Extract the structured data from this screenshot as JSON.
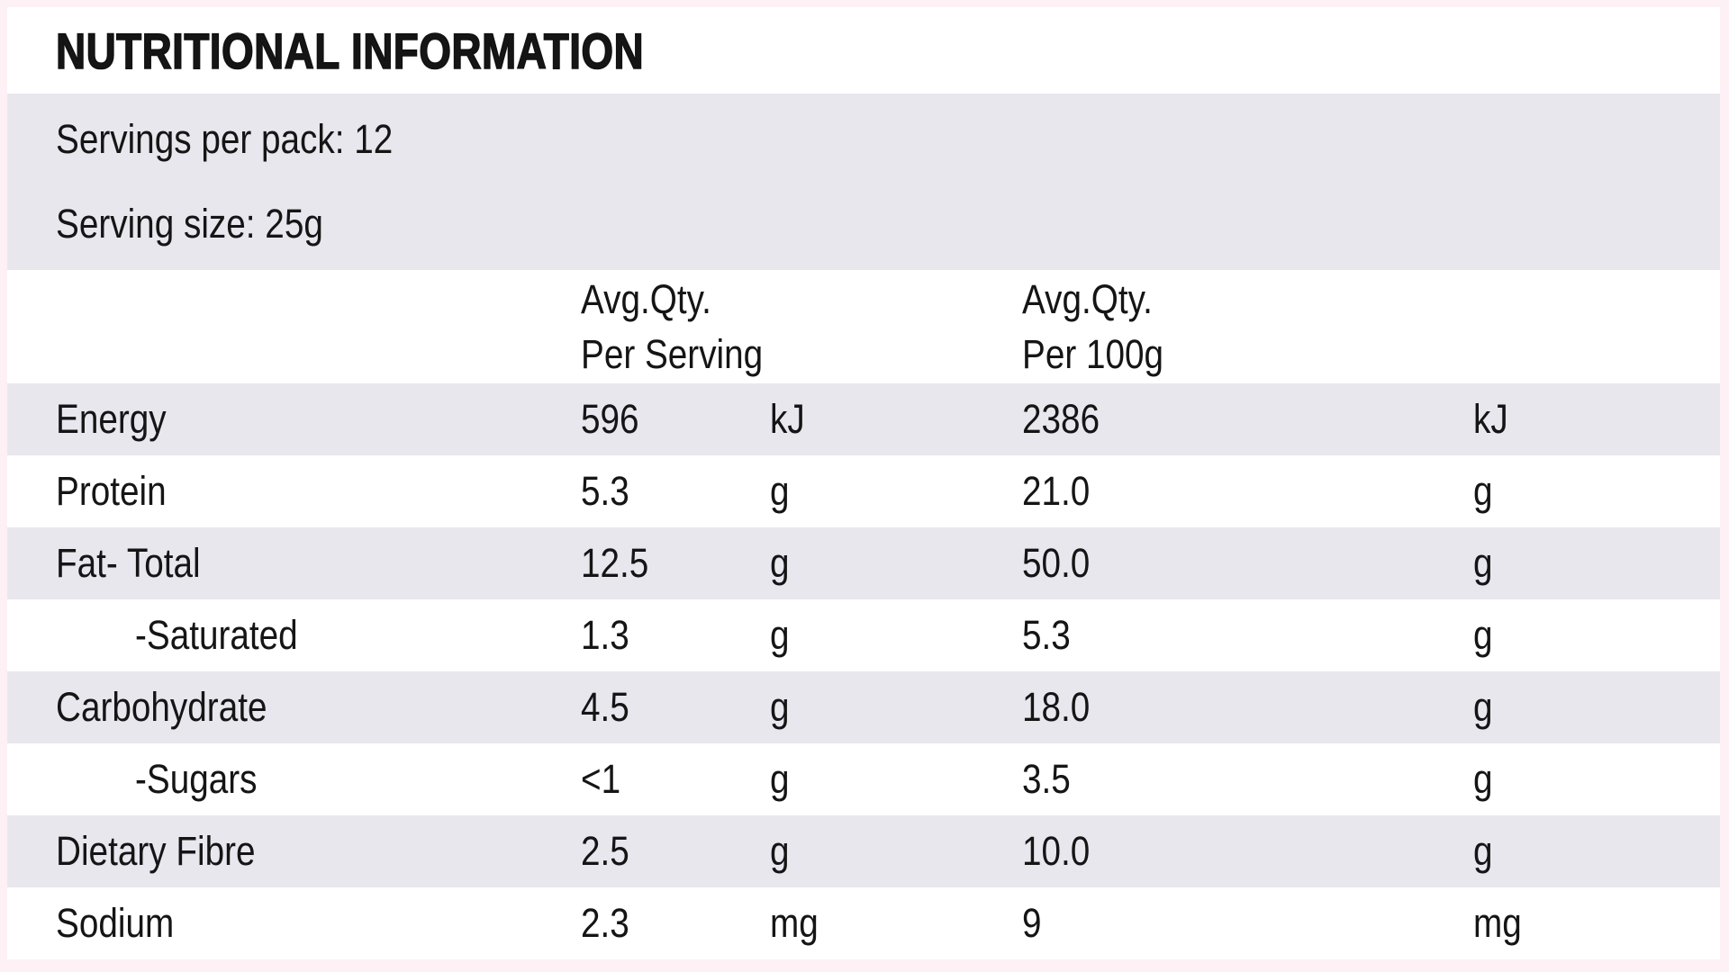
{
  "title": "NUTRITIONAL INFORMATION",
  "servings": {
    "per_pack": "Servings per pack: 12",
    "size": "Serving size: 25g"
  },
  "columns": {
    "per_serving": {
      "line1": "Avg.Qty.",
      "line2": "Per Serving"
    },
    "per_100g": {
      "line1": "Avg.Qty.",
      "line2": "Per 100g"
    }
  },
  "rows": [
    {
      "label": "Energy",
      "per_serving_value": "596",
      "per_serving_unit": "kJ",
      "per_100g_value": "2386",
      "per_100g_unit": "kJ"
    },
    {
      "label": "Protein",
      "per_serving_value": "5.3",
      "per_serving_unit": "g",
      "per_100g_value": "21.0",
      "per_100g_unit": "g"
    },
    {
      "label": "Fat- Total",
      "per_serving_value": "12.5",
      "per_serving_unit": "g",
      "per_100g_value": "50.0",
      "per_100g_unit": "g"
    },
    {
      "label": "-Saturated",
      "per_serving_value": "1.3",
      "per_serving_unit": "g",
      "per_100g_value": "5.3",
      "per_100g_unit": "g"
    },
    {
      "label": "Carbohydrate",
      "per_serving_value": "4.5",
      "per_serving_unit": "g",
      "per_100g_value": "18.0",
      "per_100g_unit": "g"
    },
    {
      "label": "-Sugars",
      "per_serving_value": "<1",
      "per_serving_unit": "g",
      "per_100g_value": "3.5",
      "per_100g_unit": "g"
    },
    {
      "label": "Dietary Fibre",
      "per_serving_value": "2.5",
      "per_serving_unit": "g",
      "per_100g_value": "10.0",
      "per_100g_unit": "g"
    },
    {
      "label": "Sodium",
      "per_serving_value": "2.3",
      "per_serving_unit": "mg",
      "per_100g_value": "9",
      "per_100g_unit": "mg"
    }
  ],
  "colors": {
    "row_shade": "#e8e7ee",
    "outer_margin": "#fdf1f5",
    "text": "#151515"
  }
}
